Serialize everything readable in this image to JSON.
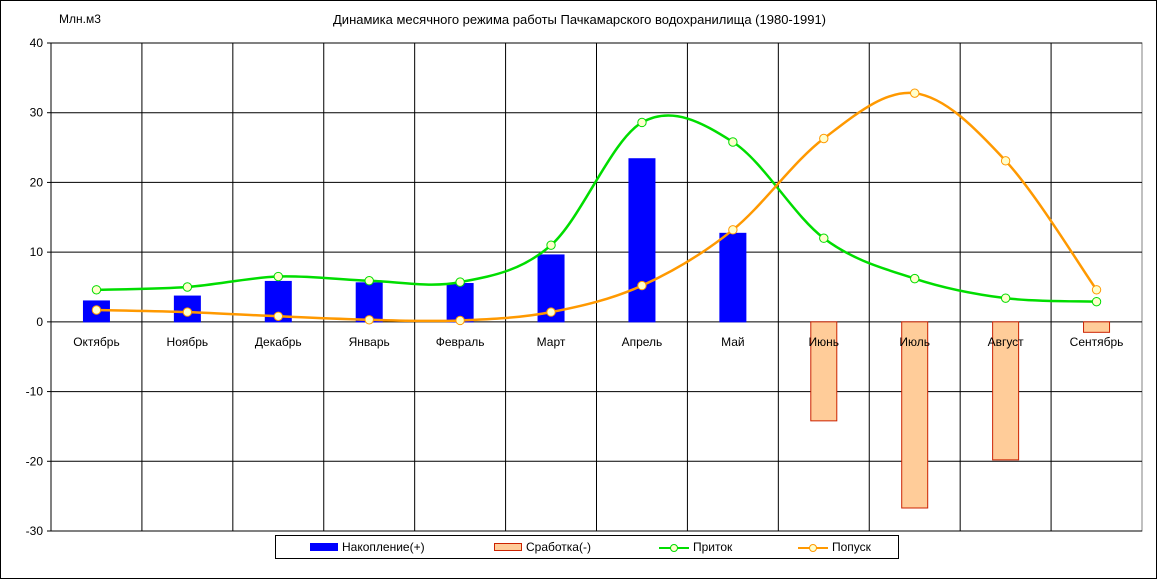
{
  "title": "Динамика месячного режима работы Пачкамарского водохранилища (1980-1991)",
  "y_unit": "Млн.м3",
  "colors": {
    "accumulation": "#0000ff",
    "drawdown_fill": "#ffcc99",
    "drawdown_stroke": "#cc2200",
    "inflow": "#00dd00",
    "release": "#ff9900",
    "marker_fill": "#ffffcc"
  },
  "legend": {
    "accumulation": "Накопление(+)",
    "drawdown": "Сработка(-)",
    "inflow": "Приток",
    "release": "Попуск"
  },
  "chart_data": {
    "type": "bar",
    "title": "Динамика месячного режима работы Пачкамарского водохранилища (1980-1991)",
    "ylabel": "Млн.м3",
    "xlabel": "",
    "ylim": [
      -30,
      40
    ],
    "yticks": [
      -30,
      -20,
      -10,
      0,
      10,
      20,
      30,
      40
    ],
    "grid": true,
    "legend_position": "bottom",
    "categories": [
      "Октябрь",
      "Ноябрь",
      "Декабрь",
      "Январь",
      "Февраль",
      "Март",
      "Апрель",
      "Май",
      "Июнь",
      "Июль",
      "Август",
      "Сентябрь"
    ],
    "series": [
      {
        "name": "Накопление(+)",
        "kind": "bar",
        "values": [
          3.0,
          3.7,
          5.8,
          5.6,
          5.5,
          9.6,
          23.4,
          12.7,
          0,
          0,
          0,
          0
        ]
      },
      {
        "name": "Сработка(-)",
        "kind": "bar",
        "values": [
          0,
          0,
          0,
          0,
          0,
          0,
          0,
          0,
          -14.2,
          -26.7,
          -19.8,
          -1.5
        ]
      },
      {
        "name": "Приток",
        "kind": "line",
        "values": [
          4.6,
          5.0,
          6.5,
          5.9,
          5.7,
          11.0,
          28.6,
          25.8,
          12.0,
          6.2,
          3.4,
          2.9
        ]
      },
      {
        "name": "Попуск",
        "kind": "line",
        "values": [
          1.7,
          1.4,
          0.8,
          0.3,
          0.2,
          1.4,
          5.2,
          13.2,
          26.3,
          32.8,
          23.1,
          4.6
        ]
      }
    ]
  }
}
